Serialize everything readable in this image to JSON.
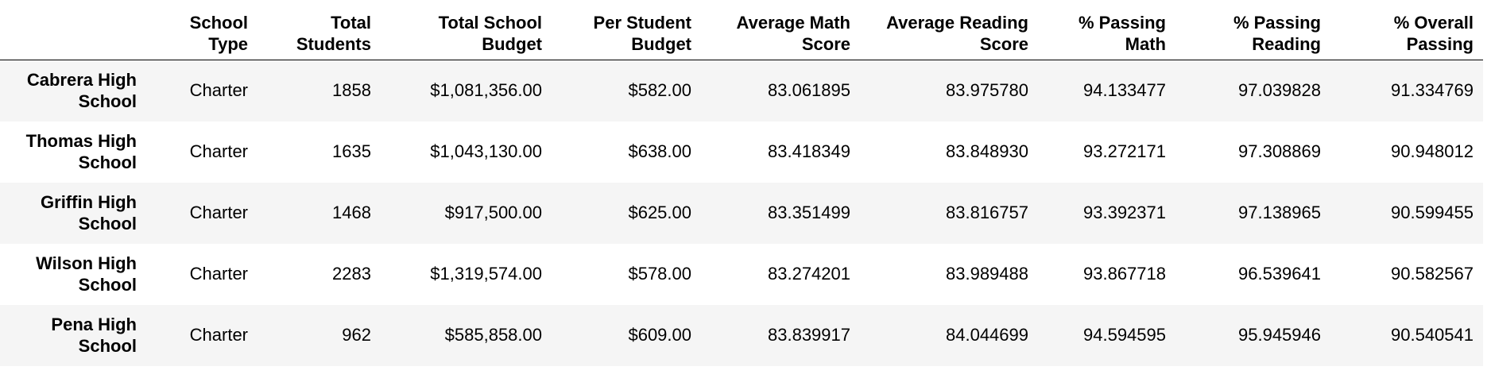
{
  "table": {
    "columns": [
      {
        "key": "index",
        "line1": "",
        "line2": ""
      },
      {
        "key": "school_type",
        "line1": "School",
        "line2": "Type"
      },
      {
        "key": "total_students",
        "line1": "Total",
        "line2": "Students"
      },
      {
        "key": "total_budget",
        "line1": "Total School",
        "line2": "Budget"
      },
      {
        "key": "per_student_budget",
        "line1": "Per Student",
        "line2": "Budget"
      },
      {
        "key": "avg_math",
        "line1": "Average Math",
        "line2": "Score"
      },
      {
        "key": "avg_reading",
        "line1": "Average Reading",
        "line2": "Score"
      },
      {
        "key": "pct_math",
        "line1": "% Passing",
        "line2": "Math"
      },
      {
        "key": "pct_reading",
        "line1": "% Passing",
        "line2": "Reading"
      },
      {
        "key": "pct_overall",
        "line1": "% Overall",
        "line2": "Passing"
      }
    ],
    "rows": [
      {
        "name_line1": "Cabrera High",
        "name_line2": "School",
        "cells": [
          "Charter",
          "1858",
          "$1,081,356.00",
          "$582.00",
          "83.061895",
          "83.975780",
          "94.133477",
          "97.039828",
          "91.334769"
        ]
      },
      {
        "name_line1": "Thomas High",
        "name_line2": "School",
        "cells": [
          "Charter",
          "1635",
          "$1,043,130.00",
          "$638.00",
          "83.418349",
          "83.848930",
          "93.272171",
          "97.308869",
          "90.948012"
        ]
      },
      {
        "name_line1": "Griffin High",
        "name_line2": "School",
        "cells": [
          "Charter",
          "1468",
          "$917,500.00",
          "$625.00",
          "83.351499",
          "83.816757",
          "93.392371",
          "97.138965",
          "90.599455"
        ]
      },
      {
        "name_line1": "Wilson High",
        "name_line2": "School",
        "cells": [
          "Charter",
          "2283",
          "$1,319,574.00",
          "$578.00",
          "83.274201",
          "83.989488",
          "93.867718",
          "96.539641",
          "90.582567"
        ]
      },
      {
        "name_line1": "Pena High",
        "name_line2": "School",
        "cells": [
          "Charter",
          "962",
          "$585,858.00",
          "$609.00",
          "83.839917",
          "84.044699",
          "94.594595",
          "95.945946",
          "90.540541"
        ]
      }
    ]
  }
}
